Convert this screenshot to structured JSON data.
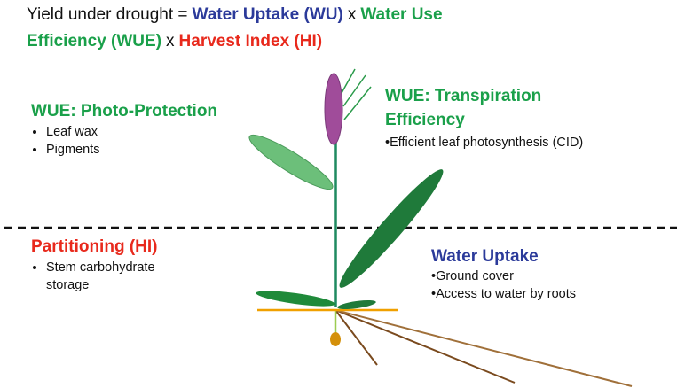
{
  "title": [
    [
      "Yield under drought =",
      "Water Uptake (WU)",
      "x",
      "Water Use"
    ],
    [
      "Efficiency (WUE)",
      "x",
      "Harvest Index (HI)"
    ]
  ],
  "photo_protection": {
    "heading": "WUE: Photo-Protection",
    "bullets": [
      "Leaf wax",
      "Pigments"
    ]
  },
  "transpiration": {
    "heading": "WUE: Transpiration Efficiency",
    "bullets": [
      "Efficient leaf photosynthesis (CID)"
    ]
  },
  "partitioning": {
    "heading": "Partitioning (HI)",
    "bullets": [
      "Stem carbohydrate storage"
    ]
  },
  "water_uptake": {
    "heading": "Water Uptake",
    "bullets": [
      "Ground cover",
      "Access to water by roots"
    ]
  }
}
